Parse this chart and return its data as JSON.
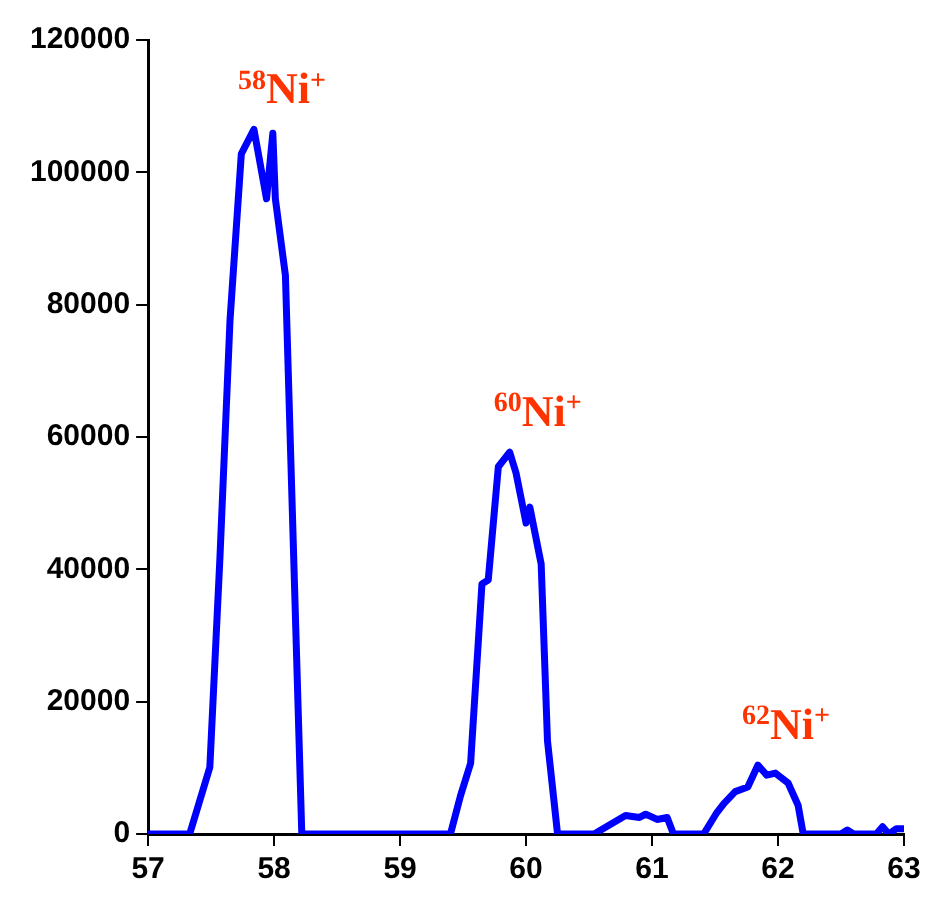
{
  "chart_data": {
    "type": "line",
    "x": [
      57,
      57.33,
      57.49,
      57.57,
      57.65,
      57.74,
      57.84,
      57.94,
      57.99,
      58.01,
      58.09,
      58.22,
      59.4,
      59.48,
      59.56,
      59.65,
      59.7,
      59.78,
      59.87,
      59.92,
      60,
      60.03,
      60.12,
      60.17,
      60.25,
      60.54,
      60.79,
      60.9,
      60.95,
      61.04,
      61.12,
      61.17,
      61.41,
      61.51,
      61.57,
      61.66,
      61.76,
      61.84,
      61.91,
      61.98,
      62.08,
      62.16,
      62.2,
      62.5,
      62.55,
      62.6,
      62.78,
      62.83,
      62.88,
      62.94,
      63
    ],
    "series": [
      {
        "color": "#0000ff",
        "values": [
          0,
          0,
          10100,
          41700,
          77600,
          102800,
          106500,
          96000,
          105900,
          96000,
          84400,
          0,
          0,
          5800,
          10700,
          37800,
          38400,
          55500,
          57700,
          54600,
          47000,
          49400,
          40800,
          14100,
          0,
          0,
          2800,
          2500,
          3000,
          2200,
          2500,
          0,
          0,
          3100,
          4600,
          6400,
          7100,
          10400,
          8900,
          9200,
          7700,
          4300,
          0,
          0,
          600,
          0,
          0,
          1100,
          0,
          800,
          800
        ]
      }
    ],
    "xlim": [
      57,
      63
    ],
    "xticks": [
      57,
      58,
      59,
      60,
      61,
      62,
      63
    ],
    "ylim": [
      0,
      120000
    ],
    "yticks": [
      0,
      20000,
      40000,
      60000,
      80000,
      100000,
      120000
    ],
    "grid": false,
    "legend": false,
    "marker": "none",
    "line_style": "solid",
    "annotations": [
      "$^{58}$Ni$^{+}$",
      "$^{60}$Ni$^{+}$",
      "$^{62}$Ni$^{+}$"
    ]
  }
}
